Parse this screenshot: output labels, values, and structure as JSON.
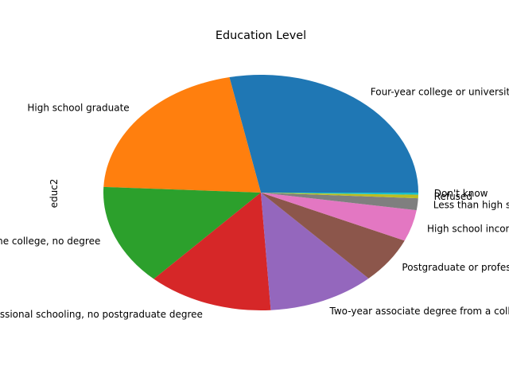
{
  "chart_data": {
    "type": "pie",
    "title": "Education Level",
    "ylabel": "educ2",
    "start_angle_deg": 0,
    "direction": "counterclockwise",
    "legend": false,
    "grid": false,
    "categories": [
      "Four-year college or university degree/Bachelor's degree",
      "High school graduate",
      "Some college, no degree",
      "Some postgraduate or professional schooling, no postgraduate degree",
      "Two-year associate degree from a college or university",
      "Postgraduate or professional degree",
      "High school incomplete",
      "Less than high school",
      "Refused",
      "Don't know"
    ],
    "values": [
      29.5,
      22.0,
      14.5,
      13.5,
      11.5,
      6.6,
      4.5,
      1.7,
      0.5,
      0.3
    ],
    "colors": [
      "#1f77b4",
      "#ff7f0e",
      "#2ca02c",
      "#d62728",
      "#9467bd",
      "#8c564b",
      "#e377c2",
      "#7f7f7f",
      "#bcbd22",
      "#17becf"
    ]
  }
}
